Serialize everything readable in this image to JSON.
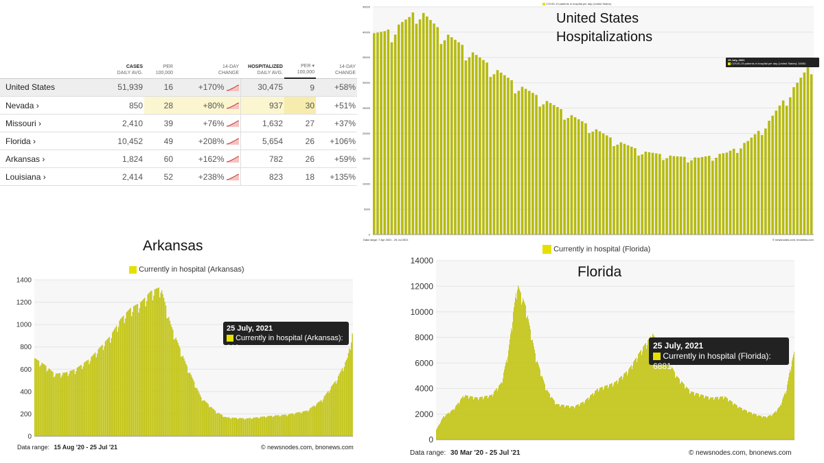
{
  "table": {
    "headers": {
      "cases": [
        "CASES",
        "DAILY AVG."
      ],
      "per1": [
        "PER",
        "100,000"
      ],
      "change1": [
        "14-DAY",
        "CHANGE"
      ],
      "hosp": [
        "HOSPITALIZED",
        "DAILY AVG."
      ],
      "per2": [
        "PER ▾",
        "100,000"
      ],
      "change2": [
        "14-DAY",
        "CHANGE"
      ]
    },
    "rows": [
      {
        "state": "United States",
        "cases": "51,939",
        "per": "16",
        "change": "+170%",
        "hosp": "30,475",
        "hper": "9",
        "hchange": "+58%"
      },
      {
        "state": "Nevada ›",
        "cases": "850",
        "per": "28",
        "change": "+80%",
        "hosp": "937",
        "hper": "30",
        "hchange": "+51%"
      },
      {
        "state": "Missouri ›",
        "cases": "2,410",
        "per": "39",
        "change": "+76%",
        "hosp": "1,632",
        "hper": "27",
        "hchange": "+37%"
      },
      {
        "state": "Florida ›",
        "cases": "10,452",
        "per": "49",
        "change": "+208%",
        "hosp": "5,654",
        "hper": "26",
        "hchange": "+106%"
      },
      {
        "state": "Arkansas ›",
        "cases": "1,824",
        "per": "60",
        "change": "+162%",
        "hosp": "782",
        "hper": "26",
        "hchange": "+59%"
      },
      {
        "state": "Louisiana ›",
        "cases": "2,414",
        "per": "52",
        "change": "+238%",
        "hosp": "823",
        "hper": "18",
        "hchange": "+135%"
      }
    ]
  },
  "colors": {
    "bar": "#c2c414",
    "swatch": "#e6e000",
    "tooltip": "#222222",
    "highlight": "#fbf6cf"
  },
  "chart_data": [
    {
      "type": "bar",
      "title": "United States Hospitalizations",
      "legend": "COVID-19 patients in hospital per day (United States)",
      "ylim": [
        0,
        45000
      ],
      "yticks": [
        0,
        5000,
        10000,
        15000,
        20000,
        25000,
        30000,
        35000,
        40000,
        45000
      ],
      "tooltip": {
        "date": "25 July, 2021",
        "text": "COVID-19 patients in hospital per day (United States): 34054"
      },
      "footer_left": "Data range:  7 Apr 2021  -  25 Jul 2021",
      "footer_right": "© newsnodes.com, bnonews.com",
      "anchors": [
        [
          0,
          39800
        ],
        [
          3,
          40200
        ],
        [
          7,
          41500
        ],
        [
          10,
          43000
        ],
        [
          12,
          44800
        ],
        [
          14,
          43800
        ],
        [
          18,
          41000
        ],
        [
          25,
          37500
        ],
        [
          32,
          34000
        ],
        [
          40,
          30000
        ],
        [
          50,
          26000
        ],
        [
          60,
          22000
        ],
        [
          68,
          18800
        ],
        [
          76,
          16500
        ],
        [
          85,
          15500
        ],
        [
          92,
          15200
        ],
        [
          100,
          16200
        ],
        [
          106,
          18500
        ],
        [
          112,
          22500
        ],
        [
          116,
          26500
        ],
        [
          120,
          30000
        ],
        [
          124,
          34054
        ]
      ],
      "n_points": 125
    },
    {
      "type": "bar",
      "title": "Arkansas",
      "legend": "Currently in hospital (Arkansas)",
      "ylim": [
        0,
        1400
      ],
      "yticks": [
        0,
        200,
        400,
        600,
        800,
        1000,
        1200,
        1400
      ],
      "tooltip": {
        "date": "25 July, 2021",
        "text": "Currently in hospital (Arkansas): 919"
      },
      "footer_label": "Data range:",
      "footer_range": "15 Aug '20  -  25 Jul '21",
      "footer_right": "© newsnodes.com, bnonews.com",
      "anchors": [
        [
          0,
          700
        ],
        [
          10,
          640
        ],
        [
          20,
          560
        ],
        [
          30,
          570
        ],
        [
          40,
          600
        ],
        [
          55,
          700
        ],
        [
          65,
          800
        ],
        [
          75,
          900
        ],
        [
          85,
          1050
        ],
        [
          95,
          1150
        ],
        [
          105,
          1200
        ],
        [
          115,
          1300
        ],
        [
          125,
          1340
        ],
        [
          135,
          1000
        ],
        [
          150,
          650
        ],
        [
          165,
          350
        ],
        [
          180,
          220
        ],
        [
          190,
          170
        ],
        [
          210,
          160
        ],
        [
          230,
          180
        ],
        [
          250,
          195
        ],
        [
          270,
          230
        ],
        [
          285,
          330
        ],
        [
          300,
          520
        ],
        [
          310,
          700
        ],
        [
          315,
          919
        ]
      ],
      "n_points": 316
    },
    {
      "type": "bar",
      "title": "Florida",
      "legend": "Currently in hospital (Florida)",
      "ylim": [
        0,
        14000
      ],
      "yticks": [
        0,
        2000,
        4000,
        6000,
        8000,
        10000,
        12000,
        14000
      ],
      "tooltip": {
        "date": "25 July, 2021",
        "text": "Currently in hospital (Florida): 6881"
      },
      "footer_label": "Data range:",
      "footer_range": "30 Mar '20  -  25 Jul '21",
      "footer_right": "© newsnodes.com, bnonews.com",
      "anchors": [
        [
          0,
          800
        ],
        [
          10,
          1800
        ],
        [
          25,
          2400
        ],
        [
          40,
          3500
        ],
        [
          60,
          3300
        ],
        [
          80,
          3500
        ],
        [
          95,
          4500
        ],
        [
          105,
          7000
        ],
        [
          112,
          10000
        ],
        [
          118,
          12200
        ],
        [
          130,
          10500
        ],
        [
          145,
          6500
        ],
        [
          160,
          4000
        ],
        [
          175,
          2800
        ],
        [
          200,
          2600
        ],
        [
          215,
          3000
        ],
        [
          235,
          4000
        ],
        [
          260,
          4500
        ],
        [
          280,
          5500
        ],
        [
          300,
          7200
        ],
        [
          315,
          8300
        ],
        [
          330,
          7000
        ],
        [
          350,
          5000
        ],
        [
          370,
          3800
        ],
        [
          400,
          3300
        ],
        [
          420,
          3400
        ],
        [
          440,
          2600
        ],
        [
          455,
          2200
        ],
        [
          470,
          1900
        ],
        [
          480,
          1800
        ],
        [
          490,
          2000
        ],
        [
          500,
          2600
        ],
        [
          510,
          4000
        ],
        [
          515,
          5500
        ],
        [
          521,
          6881
        ]
      ],
      "n_points": 522
    }
  ]
}
